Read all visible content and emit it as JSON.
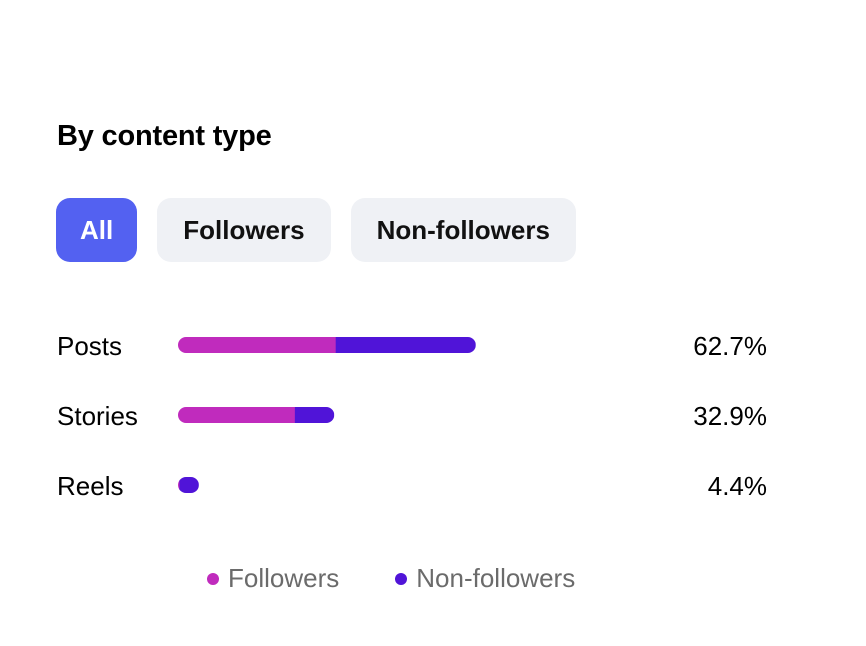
{
  "title": "By content type",
  "filters": {
    "all": "All",
    "followers": "Followers",
    "non_followers": "Non-followers",
    "selected": "All"
  },
  "colors": {
    "followers": "#c02bbd",
    "non_followers": "#5014d8",
    "accent": "#5361f1"
  },
  "chart_data": {
    "type": "bar",
    "orientation": "horizontal",
    "stacked": true,
    "categories": [
      "Posts",
      "Stories",
      "Reels"
    ],
    "series": [
      {
        "name": "Followers",
        "values": [
          33.2,
          24.6,
          0.3
        ]
      },
      {
        "name": "Non-followers",
        "values": [
          29.5,
          8.3,
          4.1
        ]
      }
    ],
    "totals": [
      62.7,
      32.9,
      4.4
    ],
    "total_labels": [
      "62.7%",
      "32.9%",
      "4.4%"
    ],
    "xlim": [
      0,
      100
    ],
    "grid": false,
    "legend_position": "bottom"
  },
  "legend": [
    {
      "label": "Followers",
      "color": "#c02bbd"
    },
    {
      "label": "Non-followers",
      "color": "#5014d8"
    }
  ]
}
